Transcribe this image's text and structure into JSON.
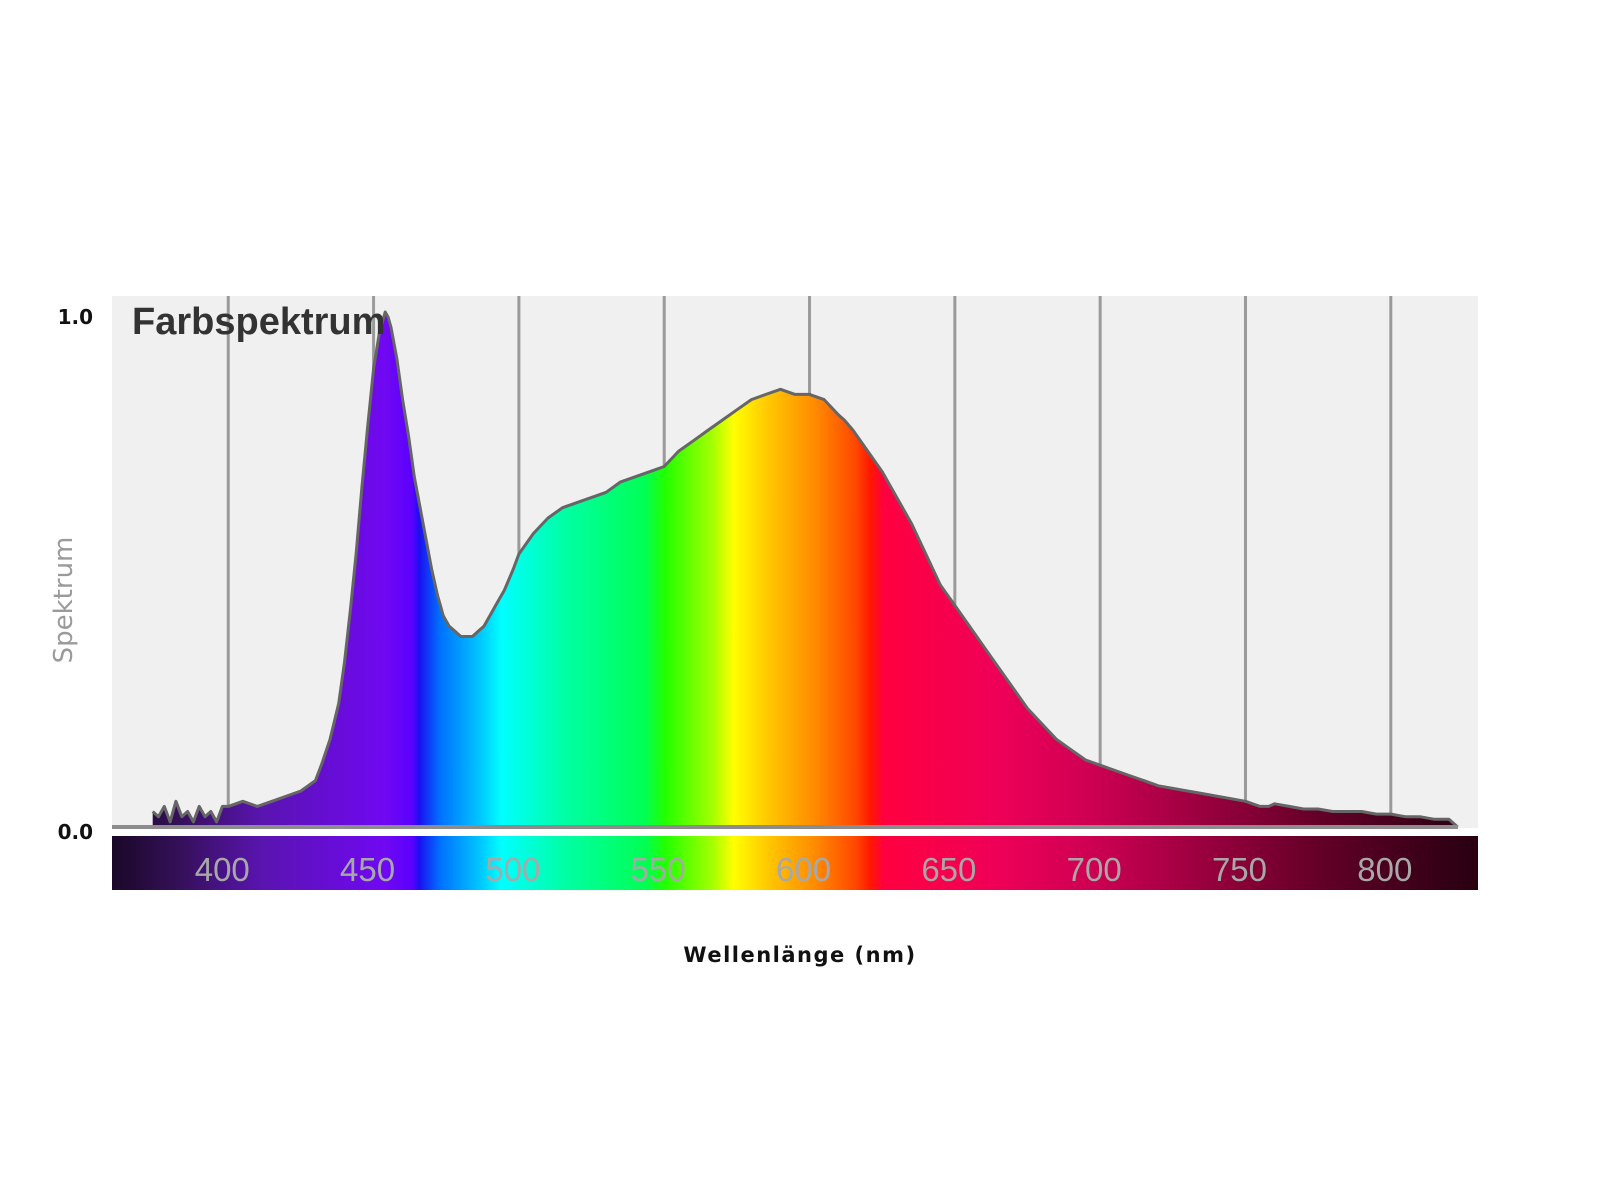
{
  "chart_data": {
    "type": "area",
    "title": "Farbspektrum",
    "xlabel": "Wellenlänge (nm)",
    "ylabel": "Spektrum",
    "xlim": [
      360,
      830
    ],
    "ylim": [
      0.0,
      1.0
    ],
    "y_ticks": [
      {
        "value": 0.0,
        "label": "0.0"
      },
      {
        "value": 1.0,
        "label": "1.0"
      }
    ],
    "x_ticks": [
      {
        "value": 400,
        "label": "400"
      },
      {
        "value": 450,
        "label": "450"
      },
      {
        "value": 500,
        "label": "500"
      },
      {
        "value": 550,
        "label": "550"
      },
      {
        "value": 600,
        "label": "600"
      },
      {
        "value": 650,
        "label": "650"
      },
      {
        "value": 700,
        "label": "700"
      },
      {
        "value": 750,
        "label": "750"
      },
      {
        "value": 800,
        "label": "800"
      }
    ],
    "grid": true,
    "colors": {
      "plot_background": "#f0f0f0",
      "grid": "#9a9a9a",
      "outline": "#666666",
      "tick_label": "#a8a8a8",
      "title": "#333333"
    },
    "series": [
      {
        "x": [
          374,
          376,
          378,
          380,
          382,
          384,
          386,
          388,
          390,
          392,
          394,
          396,
          398,
          400,
          405,
          410,
          415,
          420,
          425,
          430,
          432,
          435,
          438,
          440,
          442,
          444,
          446,
          448,
          450,
          452,
          454,
          455,
          456,
          457,
          458,
          459,
          460,
          462,
          464,
          466,
          468,
          470,
          472,
          474,
          476,
          478,
          480,
          482,
          484,
          486,
          488,
          490,
          492,
          495,
          498,
          500,
          505,
          510,
          515,
          520,
          525,
          530,
          535,
          540,
          545,
          550,
          555,
          560,
          565,
          570,
          575,
          580,
          585,
          590,
          595,
          600,
          605,
          610,
          612,
          615,
          620,
          625,
          630,
          635,
          640,
          645,
          650,
          655,
          660,
          665,
          670,
          675,
          680,
          685,
          690,
          695,
          700,
          705,
          710,
          715,
          720,
          725,
          730,
          735,
          740,
          745,
          750,
          755,
          758,
          760,
          765,
          770,
          775,
          780,
          785,
          790,
          795,
          800,
          805,
          810,
          815,
          820,
          823
        ],
        "y": [
          0.03,
          0.02,
          0.04,
          0.01,
          0.05,
          0.02,
          0.03,
          0.01,
          0.04,
          0.02,
          0.03,
          0.01,
          0.04,
          0.04,
          0.05,
          0.04,
          0.05,
          0.06,
          0.07,
          0.09,
          0.12,
          0.17,
          0.24,
          0.32,
          0.42,
          0.53,
          0.66,
          0.78,
          0.89,
          0.96,
          1.0,
          0.99,
          0.97,
          0.94,
          0.91,
          0.87,
          0.83,
          0.76,
          0.68,
          0.62,
          0.56,
          0.5,
          0.45,
          0.41,
          0.39,
          0.38,
          0.37,
          0.37,
          0.37,
          0.38,
          0.39,
          0.41,
          0.43,
          0.46,
          0.5,
          0.53,
          0.57,
          0.6,
          0.62,
          0.63,
          0.64,
          0.65,
          0.67,
          0.68,
          0.69,
          0.7,
          0.73,
          0.75,
          0.77,
          0.79,
          0.81,
          0.83,
          0.84,
          0.85,
          0.84,
          0.84,
          0.83,
          0.8,
          0.79,
          0.77,
          0.73,
          0.69,
          0.64,
          0.59,
          0.53,
          0.47,
          0.43,
          0.39,
          0.35,
          0.31,
          0.27,
          0.23,
          0.2,
          0.17,
          0.15,
          0.13,
          0.12,
          0.11,
          0.1,
          0.09,
          0.08,
          0.075,
          0.07,
          0.065,
          0.06,
          0.055,
          0.05,
          0.04,
          0.04,
          0.045,
          0.04,
          0.035,
          0.035,
          0.03,
          0.03,
          0.03,
          0.025,
          0.025,
          0.02,
          0.02,
          0.015,
          0.015,
          0.0
        ]
      }
    ]
  }
}
